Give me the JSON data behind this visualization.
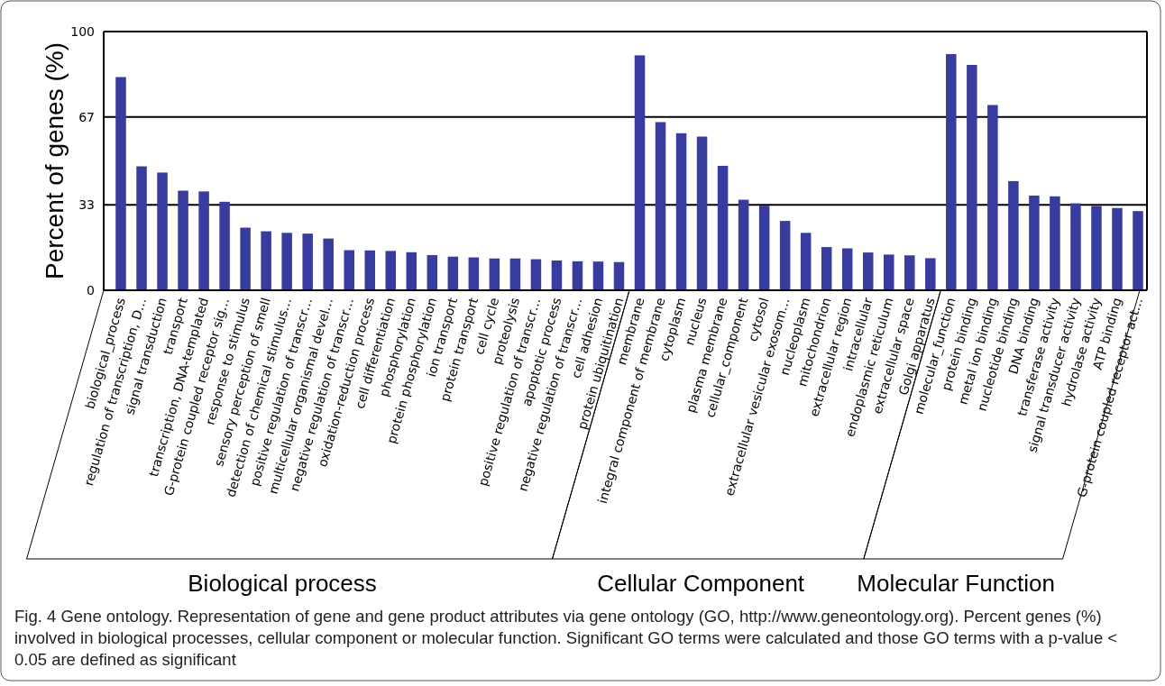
{
  "chart_data": {
    "type": "bar",
    "ylabel": "Percent of genes (%)",
    "categories": [
      "biological_process",
      "regulation of transcription, D…",
      "signal transduction",
      "transport",
      "transcription, DNA-templated",
      "G-protein coupled receptor sig…",
      "response to stimulus",
      "sensory perception of smell",
      "detection of chemical stimulus…",
      "positive regulation of transcr…",
      "multicellular organismal devel…",
      "negative regulation of transcr…",
      "oxidation-reduction process",
      "cell differentiation",
      "phosphorylation",
      "protein phosphorylation",
      "ion transport",
      "protein transport",
      "cell cycle",
      "proteolysis",
      "positive regulation of transcr…",
      "apoptotic process",
      "negative regulation of transcr…",
      "cell adhesion",
      "protein ubiquitination",
      "membrane",
      "integral component of membrane",
      "cytoplasm",
      "nucleus",
      "plasma membrane",
      "cellular_component",
      "cytosol",
      "extracellular vesicular exosom…",
      "nucleoplasm",
      "mitochondrion",
      "extracellular region",
      "intracellular",
      "endoplasmic reticulum",
      "extracellular space",
      "Golgi apparatus",
      "molecular_function",
      "protein binding",
      "metal ion binding",
      "nucleotide binding",
      "DNA binding",
      "transferase activity",
      "signal transducer activity",
      "hydrolase activity",
      "ATP binding",
      "G-protein coupled receptor act…"
    ],
    "values": [
      82.4,
      47.9,
      45.5,
      38.5,
      38.2,
      34.2,
      24.2,
      22.8,
      22.2,
      21.9,
      20.0,
      15.5,
      15.4,
      15.2,
      14.7,
      13.6,
      13.0,
      12.7,
      12.3,
      12.3,
      12.0,
      11.5,
      11.2,
      11.1,
      10.9,
      90.8,
      65.0,
      60.7,
      59.4,
      48.1,
      35.0,
      32.7,
      26.8,
      22.2,
      16.7,
      16.2,
      14.6,
      13.8,
      13.5,
      12.4,
      91.3,
      87.1,
      71.6,
      42.2,
      36.6,
      36.3,
      33.6,
      32.6,
      31.8,
      30.6
    ],
    "color": "#383c9e",
    "ylim": [
      0,
      100
    ],
    "yticks": [
      0,
      33,
      67,
      100
    ],
    "grid": "y",
    "annotations": [
      "Biological process",
      "Cellular Component",
      "Molecular Function",
      "Fig. 4 Gene ontology. Representation of gene and gene product attributes via gene ontology (GO, http://www.geneontology.org). Percent genes (%) involved in biological processes, cellular component or molecular function. Significant GO terms were calculated and those GO terms with a p-value < 0.05 are defined as significant"
    ]
  }
}
